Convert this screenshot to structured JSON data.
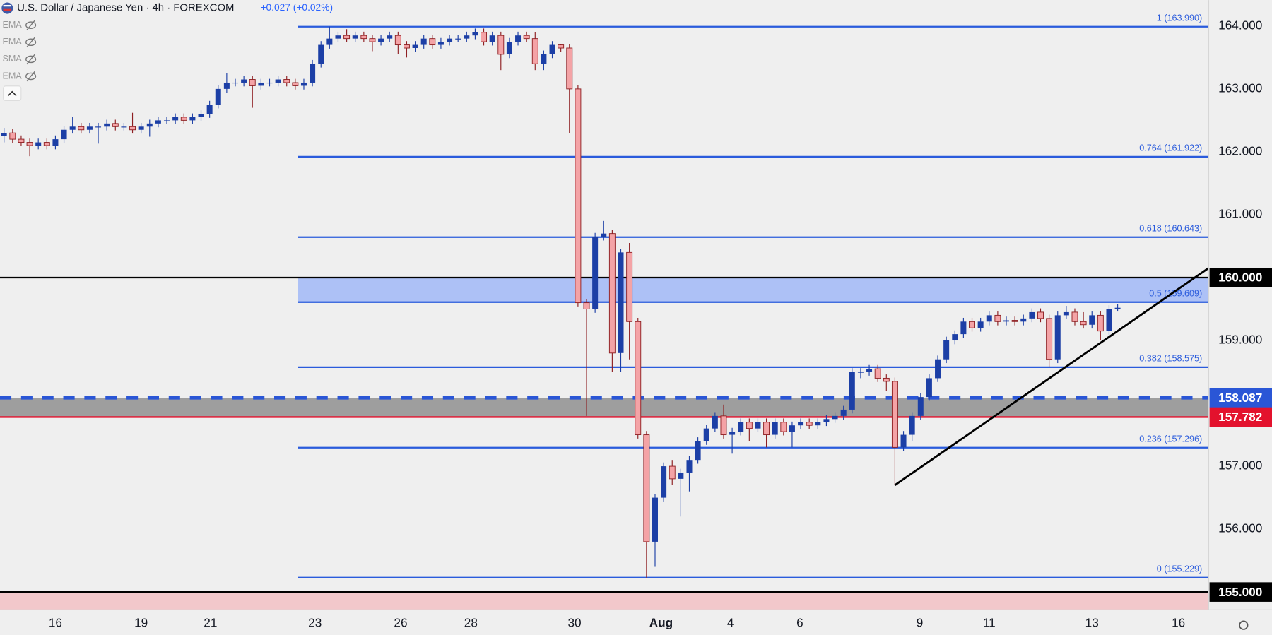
{
  "chart_data": {
    "type": "candlestick",
    "title": "U.S. Dollar / Japanese Yen · 4h · FOREXCOM",
    "change": "+0.027 (+0.02%)",
    "indicators": [
      "EMA",
      "EMA",
      "SMA",
      "EMA"
    ],
    "open": [
      162.25,
      162.3,
      162.2,
      162.15,
      162.1,
      162.15,
      162.1,
      162.2,
      162.35,
      162.4,
      162.35,
      162.4,
      162.4,
      162.45,
      162.4,
      162.4,
      162.35,
      162.4,
      162.45,
      162.5,
      162.5,
      162.55,
      162.5,
      162.55,
      162.6,
      162.75,
      163.0,
      163.1,
      163.1,
      163.15,
      163.05,
      163.1,
      163.1,
      163.15,
      163.1,
      163.05,
      163.1,
      163.4,
      163.7,
      163.8,
      163.85,
      163.8,
      163.85,
      163.8,
      163.75,
      163.8,
      163.85,
      163.7,
      163.65,
      163.7,
      163.8,
      163.7,
      163.75,
      163.8,
      163.8,
      163.85,
      163.9,
      163.75,
      163.85,
      163.55,
      163.75,
      163.85,
      163.8,
      163.4,
      163.55,
      163.7,
      163.65,
      163.0,
      159.6,
      159.5,
      160.65,
      160.7,
      158.8,
      160.4,
      159.3,
      157.5,
      155.8,
      156.5,
      157.0,
      156.8,
      156.9,
      157.1,
      157.4,
      157.6,
      157.8,
      157.5,
      157.55,
      157.7,
      157.6,
      157.7,
      157.5,
      157.7,
      157.55,
      157.65,
      157.7,
      157.65,
      157.7,
      157.75,
      157.8,
      157.9,
      158.5,
      158.5,
      158.55,
      158.4,
      158.35,
      157.3,
      157.5,
      157.8,
      158.1,
      158.4,
      158.7,
      159.0,
      159.1,
      159.3,
      159.2,
      159.3,
      159.4,
      159.3,
      159.32,
      159.3,
      159.35,
      159.45,
      159.35,
      158.7,
      159.4,
      159.45,
      159.3,
      159.25,
      159.4,
      159.15,
      159.5
    ],
    "high": [
      162.38,
      162.36,
      162.26,
      162.21,
      162.21,
      162.21,
      162.26,
      162.41,
      162.55,
      162.46,
      162.46,
      162.46,
      162.51,
      162.51,
      162.46,
      162.62,
      162.46,
      162.51,
      162.56,
      162.56,
      162.61,
      162.61,
      162.61,
      162.66,
      162.81,
      163.06,
      163.25,
      163.16,
      163.21,
      163.21,
      163.16,
      163.16,
      163.21,
      163.21,
      163.16,
      163.16,
      163.46,
      163.76,
      163.99,
      163.91,
      163.95,
      163.91,
      163.91,
      163.86,
      163.86,
      163.91,
      163.91,
      163.76,
      163.76,
      163.86,
      163.86,
      163.81,
      163.86,
      163.86,
      163.91,
      163.96,
      163.96,
      163.91,
      163.91,
      163.81,
      163.91,
      163.91,
      163.9,
      163.61,
      163.76,
      163.71,
      163.71,
      163.06,
      159.66,
      160.71,
      160.9,
      160.76,
      160.46,
      160.55,
      159.36,
      157.56,
      156.56,
      157.06,
      157.1,
      156.96,
      157.16,
      157.46,
      157.66,
      157.86,
      157.98,
      157.61,
      157.76,
      157.76,
      157.76,
      157.76,
      157.76,
      157.76,
      157.71,
      157.76,
      157.76,
      157.76,
      157.81,
      157.86,
      157.96,
      158.56,
      158.56,
      158.61,
      158.61,
      158.46,
      158.41,
      157.56,
      157.86,
      158.16,
      158.46,
      158.76,
      159.06,
      159.16,
      159.36,
      159.36,
      159.36,
      159.46,
      159.46,
      159.38,
      159.38,
      159.41,
      159.51,
      159.51,
      159.41,
      159.46,
      159.55,
      159.51,
      159.45,
      159.46,
      159.46,
      159.56,
      159.58
    ],
    "low": [
      162.15,
      162.14,
      162.09,
      161.93,
      162.04,
      162.04,
      162.04,
      162.14,
      162.29,
      162.29,
      162.29,
      162.13,
      162.34,
      162.34,
      162.34,
      162.29,
      162.29,
      162.24,
      162.39,
      162.44,
      162.44,
      162.44,
      162.44,
      162.49,
      162.54,
      162.69,
      162.94,
      163.04,
      163.04,
      162.7,
      162.99,
      163.04,
      163.04,
      163.04,
      162.99,
      162.99,
      163.04,
      163.34,
      163.64,
      163.74,
      163.74,
      163.74,
      163.74,
      163.6,
      163.69,
      163.74,
      163.55,
      163.5,
      163.59,
      163.64,
      163.64,
      163.64,
      163.69,
      163.74,
      163.74,
      163.79,
      163.69,
      163.69,
      163.3,
      163.49,
      163.69,
      163.74,
      163.3,
      163.3,
      163.49,
      163.59,
      162.3,
      159.54,
      157.8,
      159.44,
      160.59,
      158.5,
      158.5,
      158.7,
      157.44,
      155.229,
      155.4,
      156.44,
      156.7,
      156.2,
      156.6,
      157.04,
      157.34,
      157.54,
      157.44,
      157.2,
      157.49,
      157.4,
      157.54,
      157.3,
      157.44,
      157.49,
      157.3,
      157.59,
      157.59,
      157.59,
      157.64,
      157.69,
      157.74,
      157.84,
      158.4,
      158.44,
      158.34,
      158.2,
      156.7,
      157.24,
      157.4,
      157.74,
      158.04,
      158.34,
      158.64,
      158.94,
      159.04,
      159.14,
      159.14,
      159.24,
      159.24,
      159.24,
      159.24,
      159.24,
      159.29,
      159.29,
      158.575,
      158.64,
      159.34,
      159.24,
      159.19,
      159.19,
      159.0,
      159.09,
      159.46
    ],
    "close": [
      162.3,
      162.2,
      162.15,
      162.1,
      162.15,
      162.1,
      162.2,
      162.35,
      162.4,
      162.35,
      162.4,
      162.4,
      162.45,
      162.4,
      162.4,
      162.35,
      162.4,
      162.45,
      162.5,
      162.5,
      162.55,
      162.5,
      162.55,
      162.6,
      162.75,
      163.0,
      163.1,
      163.1,
      163.15,
      163.05,
      163.1,
      163.1,
      163.15,
      163.1,
      163.05,
      163.1,
      163.4,
      163.7,
      163.8,
      163.85,
      163.8,
      163.85,
      163.8,
      163.75,
      163.8,
      163.85,
      163.7,
      163.65,
      163.7,
      163.8,
      163.7,
      163.75,
      163.8,
      163.8,
      163.85,
      163.9,
      163.75,
      163.85,
      163.55,
      163.75,
      163.85,
      163.8,
      163.4,
      163.55,
      163.7,
      163.65,
      163.0,
      159.6,
      159.5,
      160.65,
      160.7,
      158.8,
      160.4,
      159.3,
      157.5,
      155.8,
      156.5,
      157.0,
      156.8,
      156.9,
      157.1,
      157.4,
      157.6,
      157.8,
      157.5,
      157.55,
      157.7,
      157.6,
      157.7,
      157.5,
      157.7,
      157.55,
      157.65,
      157.7,
      157.65,
      157.7,
      157.75,
      157.8,
      157.9,
      158.5,
      158.5,
      158.55,
      158.4,
      158.35,
      157.3,
      157.5,
      157.8,
      158.1,
      158.4,
      158.7,
      159.0,
      159.1,
      159.3,
      159.2,
      159.3,
      159.4,
      159.3,
      159.32,
      159.3,
      159.35,
      159.45,
      159.35,
      158.7,
      159.4,
      159.45,
      159.3,
      159.25,
      159.4,
      159.15,
      159.5,
      159.52
    ],
    "up_color": "#1c3fa6",
    "down_color": "#f4a3a6",
    "down_border": "#8e1f22",
    "xlim": [
      -0.47,
      140.63
    ],
    "xticks": [
      {
        "value": 6.0,
        "label": "16"
      },
      {
        "value": 16.0,
        "label": "19"
      },
      {
        "value": 24.1,
        "label": "21"
      },
      {
        "value": 36.3,
        "label": "23"
      },
      {
        "value": 46.3,
        "label": "26"
      },
      {
        "value": 54.5,
        "label": "28"
      },
      {
        "value": 66.6,
        "label": "30"
      },
      {
        "value": 76.7,
        "label": "Aug"
      },
      {
        "value": 84.8,
        "label": "4"
      },
      {
        "value": 92.9,
        "label": "6"
      },
      {
        "value": 106.9,
        "label": "9"
      },
      {
        "value": 115.0,
        "label": "11"
      },
      {
        "value": 127.0,
        "label": "13"
      },
      {
        "value": 137.1,
        "label": "16"
      }
    ],
    "ylim": [
      154.717,
      164.413
    ],
    "yticks": [
      {
        "value": 155,
        "label": "155.000"
      },
      {
        "value": 156,
        "label": "156.000"
      },
      {
        "value": 157,
        "label": "157.000"
      },
      {
        "value": 158,
        "label": "158.000"
      },
      {
        "value": 159,
        "label": "159.000"
      },
      {
        "value": 160,
        "label": "160.000"
      },
      {
        "value": 161,
        "label": "161.000"
      },
      {
        "value": 162,
        "label": "162.000"
      },
      {
        "value": 163,
        "label": "163.000"
      },
      {
        "value": 164,
        "label": "164.000"
      }
    ],
    "zones": [
      {
        "from": 159.609,
        "to": 160,
        "x_start": 34.3,
        "color": "#adc1f6"
      },
      {
        "from": 157.782,
        "to": 158.087,
        "color": "#9e9e9e"
      },
      {
        "from": 155,
        "color": "#f2c8cb"
      }
    ],
    "fib_color": "#2a5bdc",
    "fib_x_start": 34.3,
    "fib_levels": [
      {
        "value": 163.99,
        "label": "1 (163.990)"
      },
      {
        "value": 161.922,
        "label": "0.764 (161.922)"
      },
      {
        "value": 160.643,
        "label": "0.618 (160.643)"
      },
      {
        "value": 159.609,
        "label": "0.5 (159.609)"
      },
      {
        "value": 158.575,
        "label": "0.382 (158.575)"
      },
      {
        "value": 157.296,
        "label": "0.236 (157.296)"
      },
      {
        "value": 155.229,
        "label": "0 (155.229)"
      }
    ],
    "levels": [
      {
        "value": 160,
        "label": "160.000",
        "color": "#000000",
        "style": "solid"
      },
      {
        "value": 155,
        "label": "155.000",
        "color": "#000000",
        "style": "solid"
      },
      {
        "value": 158.087,
        "label": "158.087",
        "color": "#2a56d6",
        "style": "dashed"
      },
      {
        "value": 157.782,
        "label": "157.782",
        "color": "#e3122d",
        "style": "solid"
      }
    ],
    "trendline": {
      "x": [
        104,
        140.6
      ],
      "y": [
        156.7,
        160.15
      ],
      "color": "#000000"
    }
  }
}
